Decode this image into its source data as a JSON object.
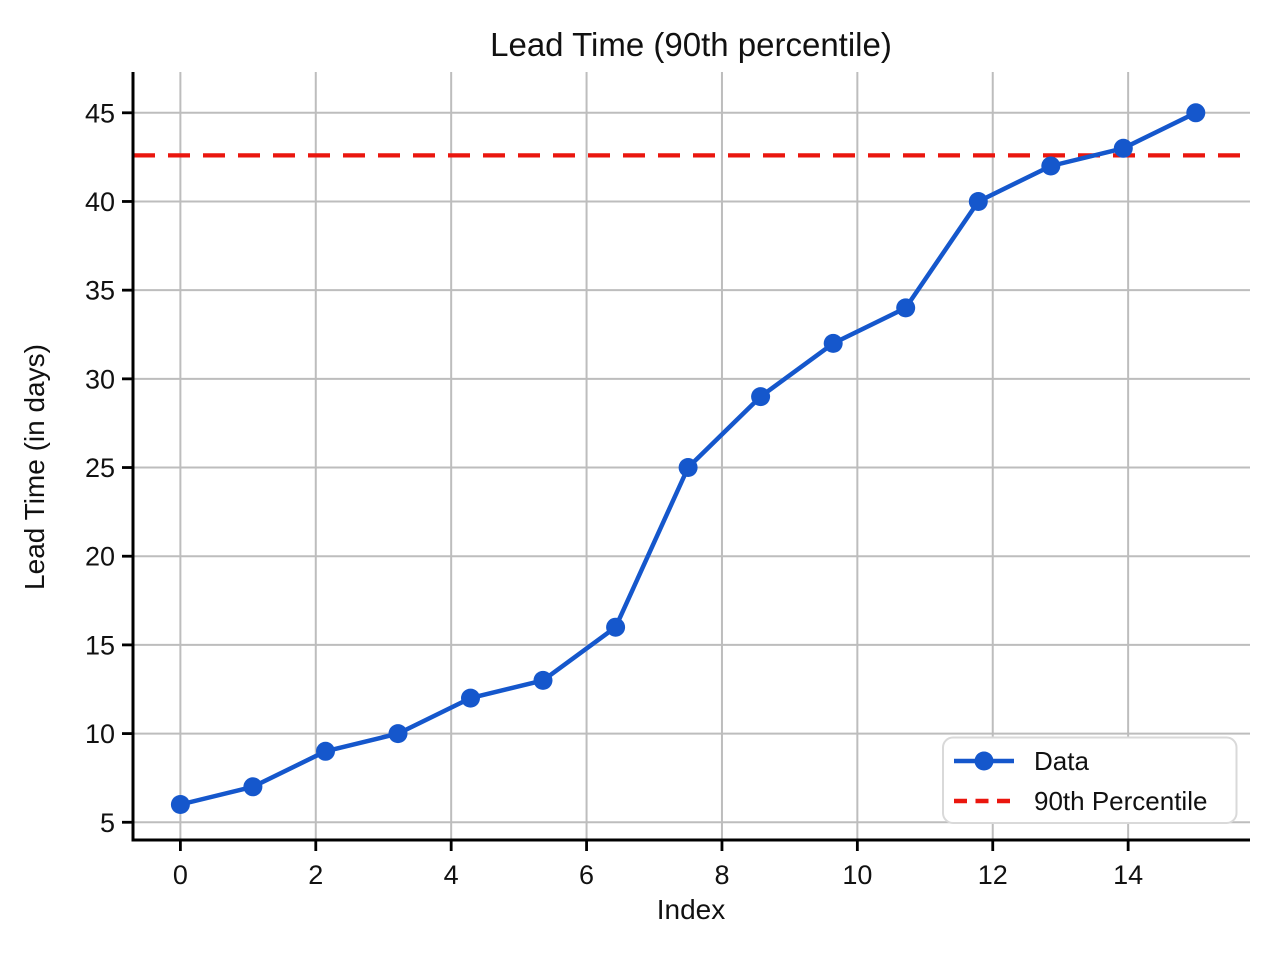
{
  "chart_data": {
    "type": "line",
    "title": "Lead Time (90th percentile)",
    "xlabel": "Index",
    "ylabel": "Lead Time (in days)",
    "x": [
      0,
      1.071,
      2.143,
      3.214,
      4.286,
      5.357,
      6.429,
      7.5,
      8.571,
      9.643,
      10.714,
      11.786,
      12.857,
      13.929,
      15
    ],
    "series": [
      {
        "name": "Data",
        "values": [
          6,
          7,
          9,
          10,
          12,
          13,
          16,
          25,
          29,
          32,
          34,
          40,
          42,
          43,
          45
        ],
        "color": "#1557cc",
        "style": "solid-with-markers"
      }
    ],
    "reference_lines": [
      {
        "name": "90th Percentile",
        "value": 42.6,
        "color": "#ea160e",
        "style": "dashed"
      }
    ],
    "xticks": [
      0,
      2,
      4,
      6,
      8,
      10,
      12,
      14
    ],
    "yticks": [
      5,
      10,
      15,
      20,
      25,
      30,
      35,
      40,
      45
    ],
    "xlim": [
      -0.7,
      15.8
    ],
    "ylim": [
      4.0,
      47.3
    ],
    "grid": true,
    "grid_color": "#bdbdbd",
    "spine_color": "#000000",
    "legend": {
      "position": "lower right",
      "entries": [
        "Data",
        "90th Percentile"
      ]
    }
  }
}
